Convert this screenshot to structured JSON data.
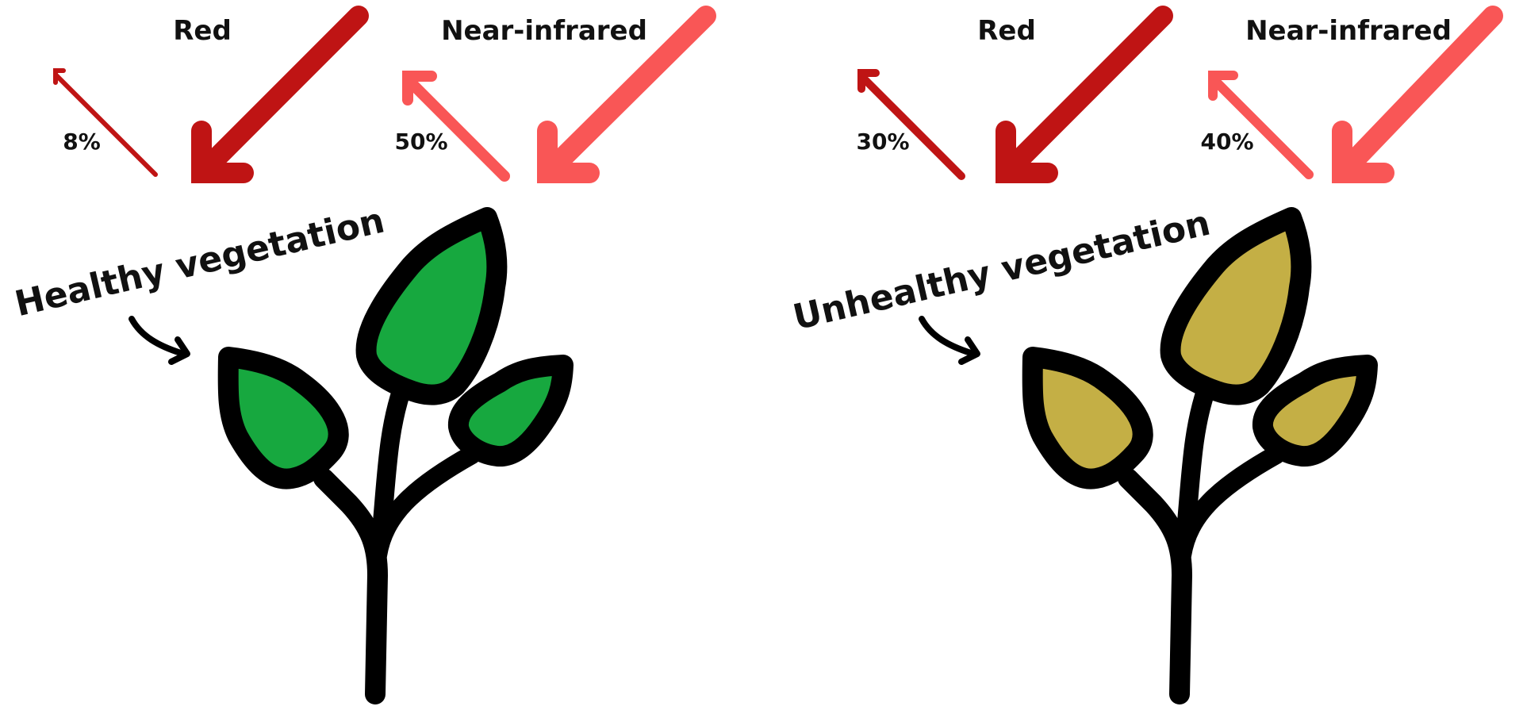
{
  "colors": {
    "red_band": "#BF1414",
    "nir_band": "#F95656",
    "healthy_leaf": "#17A83F",
    "unhealthy_leaf": "#C4AF45",
    "outline": "#000000"
  },
  "panels": [
    {
      "id": "healthy",
      "title": "Healthy vegetation",
      "leaf_color": "#17A83F",
      "bands": [
        {
          "name": "Red",
          "reflected_label": "8%",
          "reflected_percent": 8
        },
        {
          "name": "Near-infrared",
          "reflected_label": "50%",
          "reflected_percent": 50
        }
      ]
    },
    {
      "id": "unhealthy",
      "title": "Unhealthy vegetation",
      "leaf_color": "#C4AF45",
      "bands": [
        {
          "name": "Red",
          "reflected_label": "30%",
          "reflected_percent": 30
        },
        {
          "name": "Near-infrared",
          "reflected_label": "40%",
          "reflected_percent": 40
        }
      ]
    }
  ]
}
